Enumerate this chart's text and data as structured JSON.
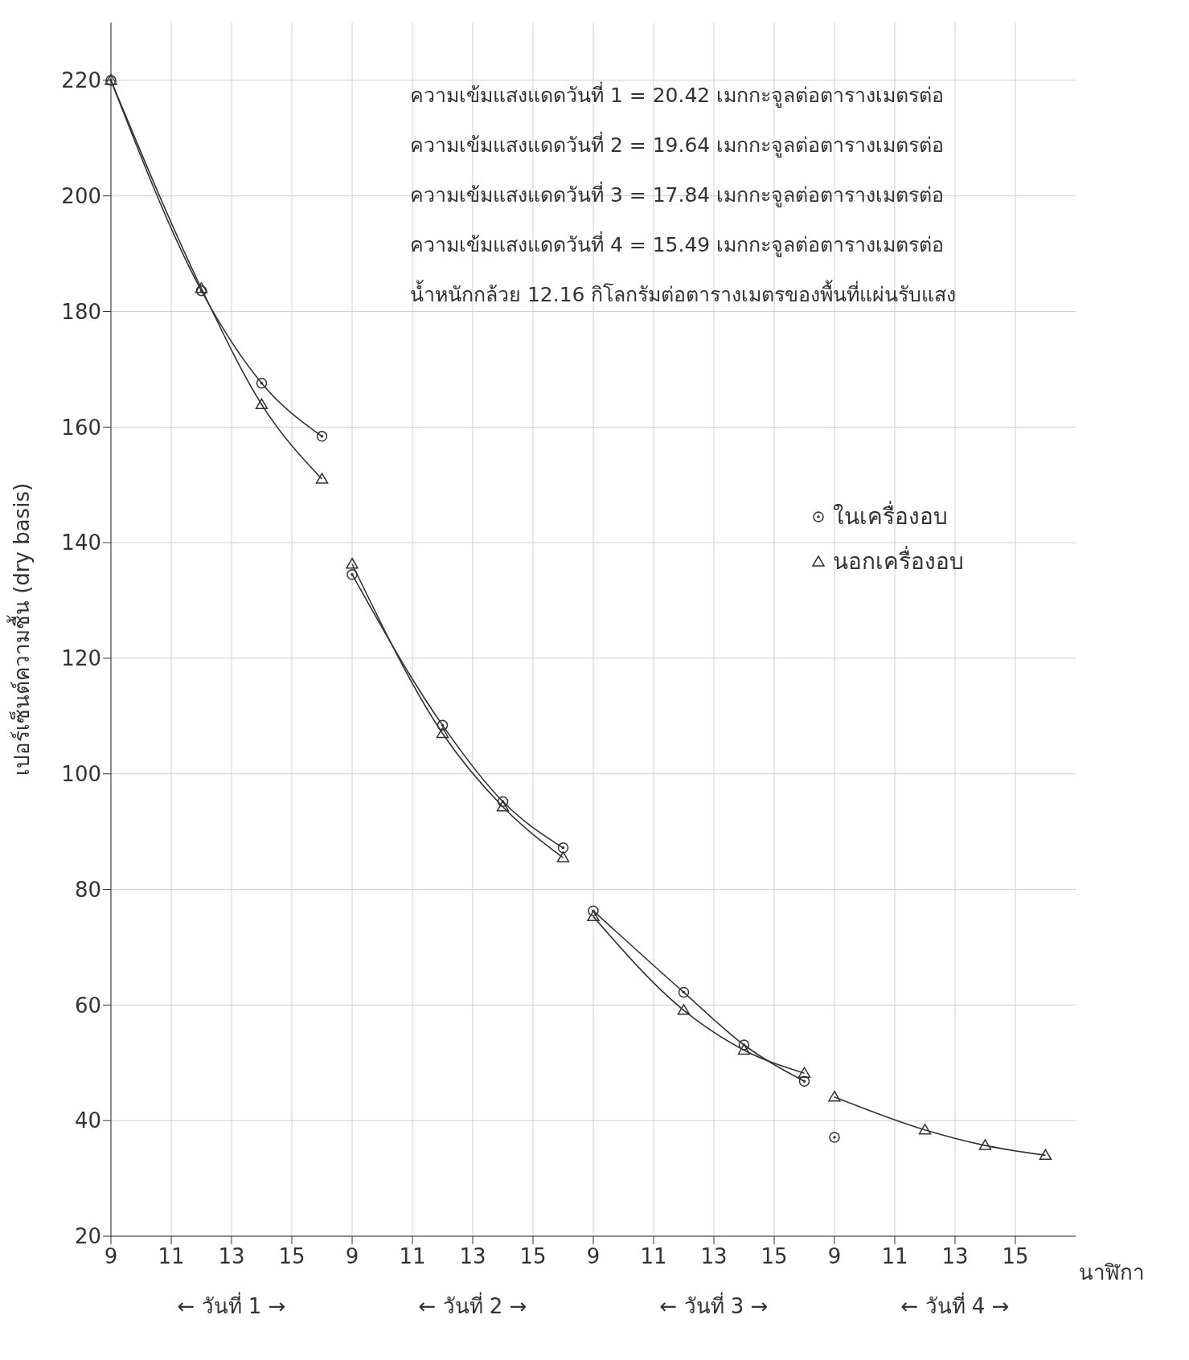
{
  "chart_data": [
    {
      "type": "line",
      "xlabel": "← วันที่ 1 →",
      "ylabel": "เปอร์เซ็นต์ความชื้น (dry basis)",
      "x": [
        9,
        12,
        14,
        16
      ],
      "series": [
        {
          "color": "#333333",
          "marker": "circle",
          "values": [
            220,
            183.6,
            167.6,
            158.4
          ]
        },
        {
          "color": "#333333",
          "marker": "triangle",
          "values": [
            220,
            184,
            163.9,
            151
          ]
        }
      ],
      "xlim": [
        9,
        17
      ],
      "ylim": [
        20,
        230
      ],
      "xticks": [
        9,
        11,
        13,
        15
      ],
      "yticks": [
        20,
        40,
        60,
        80,
        100,
        120,
        140,
        160,
        180,
        200,
        220
      ],
      "grid": true,
      "line_style": "solid",
      "annotations": [
        "ความเข้มแสงแดดวันที่ 1 = 20.42 เมกกะจูลต่อตารางเมตรต่อ",
        "ความเข้มแสงแดดวันที่ 2 = 19.64 เมกกะจูลต่อตารางเมตรต่อ",
        "ความเข้มแสงแดดวันที่ 3 = 17.84 เมกกะจูลต่อตารางเมตรต่อ",
        "ความเข้มแสงแดดวันที่ 4 = 15.49 เมกกะจูลต่อตารางเมตรต่อ",
        "น้ำหนักกล้วย 12.16 กิโลกรัมต่อตารางเมตรของพื้นที่แผ่นรับแสง"
      ]
    },
    {
      "type": "line",
      "xlabel": "← วันที่ 2 →",
      "x": [
        9,
        12,
        14,
        16
      ],
      "series": [
        {
          "color": "#333333",
          "marker": "circle",
          "values": [
            134.5,
            108.4,
            95.2,
            87.2
          ]
        },
        {
          "color": "#333333",
          "marker": "triangle",
          "values": [
            136.3,
            107,
            94.3,
            85.5
          ]
        }
      ],
      "xlim": [
        9,
        17
      ],
      "ylim": [
        20,
        230
      ],
      "xticks": [
        9,
        11,
        13,
        15
      ],
      "yticks": [
        20,
        40,
        60,
        80,
        100,
        120,
        140,
        160,
        180,
        200,
        220
      ],
      "tick_labels": "x",
      "grid": true,
      "line_style": "solid"
    },
    {
      "type": "line",
      "xlabel": "← วันที่ 3 →",
      "x": [
        9,
        12,
        14,
        16
      ],
      "series": [
        {
          "color": "#333333",
          "marker": "circle",
          "values": [
            76.3,
            62.2,
            53.1,
            46.8
          ]
        },
        {
          "color": "#333333",
          "marker": "triangle",
          "values": [
            75.3,
            59.1,
            52.2,
            48.2
          ]
        }
      ],
      "xlim": [
        9,
        17
      ],
      "ylim": [
        20,
        230
      ],
      "xticks": [
        9,
        11,
        13,
        15
      ],
      "yticks": [
        20,
        40,
        60,
        80,
        100,
        120,
        140,
        160,
        180,
        200,
        220
      ],
      "tick_labels": "x",
      "grid": true,
      "line_style": "solid"
    },
    {
      "type": "line",
      "xlabel": "← วันที่ 4 →",
      "x": [
        9,
        12,
        14,
        16
      ],
      "series": [
        {
          "name": "ในเครื่องอบ",
          "color": "#333333",
          "marker": "circle",
          "values": [
            37.1,
            null,
            null,
            null
          ]
        },
        {
          "name": "นอกเครื่องอบ",
          "color": "#333333",
          "marker": "triangle",
          "values": [
            44.1,
            38.4,
            35.7,
            34
          ]
        }
      ],
      "xlim": [
        9,
        17
      ],
      "ylim": [
        20,
        230
      ],
      "xticks": [
        9,
        11,
        13,
        15
      ],
      "yticks": [
        20,
        40,
        60,
        80,
        100,
        120,
        140,
        160,
        180,
        200,
        220
      ],
      "tick_labels": "x",
      "grid": true,
      "line_style": "solid",
      "legend": "left",
      "annotations": [
        "นาฬิกา"
      ]
    }
  ]
}
